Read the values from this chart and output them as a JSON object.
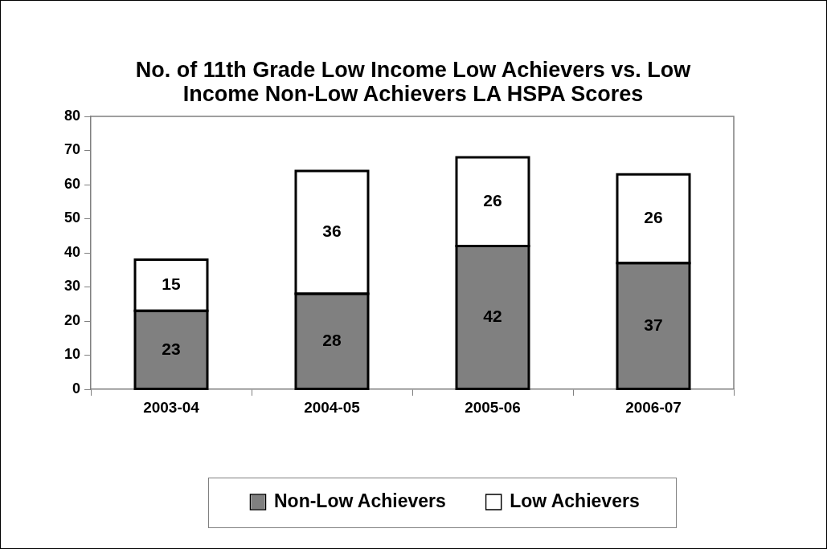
{
  "chart_data": {
    "type": "bar",
    "title": "No. of 11th Grade Low Income Low Achievers vs. Low Income Non-Low Achievers LA HSPA Scores",
    "categories": [
      "2003-04",
      "2004-05",
      "2005-06",
      "2006-07"
    ],
    "series": [
      {
        "name": "Non-Low Achievers",
        "color": "#808080",
        "values": [
          23,
          28,
          42,
          37
        ]
      },
      {
        "name": "Low Achievers",
        "color": "#ffffff",
        "values": [
          15,
          36,
          26,
          26
        ]
      }
    ],
    "stacked": true,
    "ylim": [
      0,
      80
    ],
    "yticks": [
      0,
      10,
      20,
      30,
      40,
      50,
      60,
      70,
      80
    ],
    "grid": false,
    "legend": "bottom",
    "data_labels": true
  }
}
